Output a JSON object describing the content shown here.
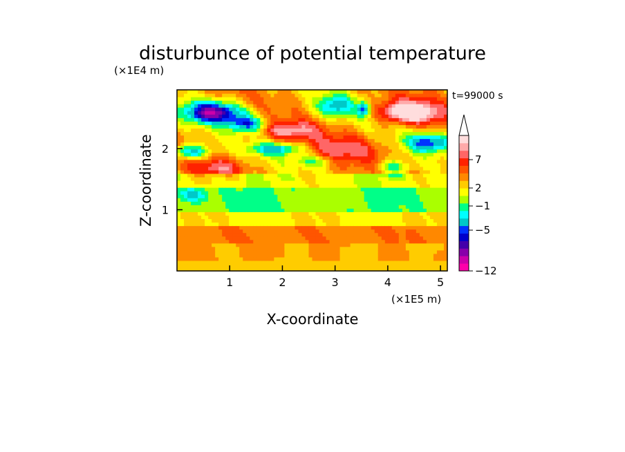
{
  "chart_data": {
    "type": "heatmap",
    "title": "disturbunce of potential temperature",
    "time_label": "t=99000 s",
    "xlabel": "X-coordinate",
    "ylabel": "Z-coordinate",
    "x_unit": "(×1E5 m)",
    "y_unit": "(×1E4 m)",
    "xlim": [
      0,
      5.13
    ],
    "ylim": [
      0,
      2.96
    ],
    "x_ticks": [
      1,
      2,
      3,
      4,
      5
    ],
    "y_ticks": [
      1,
      2
    ],
    "x_tick_labels": [
      "1",
      "2",
      "3",
      "4",
      "5"
    ],
    "y_tick_labels": [
      "1",
      "2"
    ],
    "colorbar": {
      "colors": [
        "#ff00aa",
        "#cc00aa",
        "#8800aa",
        "#4400aa",
        "#0000cc",
        "#0033ff",
        "#00c8c8",
        "#00ffff",
        "#00ff88",
        "#aaff00",
        "#ffff00",
        "#ffcc00",
        "#ff8800",
        "#ff5500",
        "#ff2200",
        "#ff6666",
        "#ffaaaa",
        "#ffdddd"
      ],
      "labels": [
        {
          "value": -12,
          "text": "−12"
        },
        {
          "value": -5,
          "text": "−5"
        },
        {
          "value": -1,
          "text": "−1"
        },
        {
          "value": 2,
          "text": "2"
        },
        {
          "value": 7,
          "text": "7"
        }
      ]
    },
    "field": {
      "features": [
        {
          "x": 0.7,
          "z": 2.6,
          "amp": -9,
          "rx": 0.55,
          "rz": 0.18
        },
        {
          "x": 1.35,
          "z": 2.4,
          "amp": -6,
          "rx": 0.35,
          "rz": 0.14
        },
        {
          "x": 2.1,
          "z": 2.3,
          "amp": 4,
          "rx": 0.6,
          "rz": 0.15
        },
        {
          "x": 1.9,
          "z": 2.0,
          "amp": -5,
          "rx": 0.5,
          "rz": 0.1
        },
        {
          "x": 3.0,
          "z": 2.7,
          "amp": -5,
          "rx": 0.35,
          "rz": 0.18
        },
        {
          "x": 3.55,
          "z": 2.65,
          "amp": -6,
          "rx": 0.12,
          "rz": 0.12
        },
        {
          "x": 4.4,
          "z": 2.6,
          "amp": 8,
          "rx": 0.55,
          "rz": 0.18
        },
        {
          "x": 4.8,
          "z": 2.1,
          "amp": -6,
          "rx": 0.45,
          "rz": 0.15
        },
        {
          "x": 4.1,
          "z": 1.7,
          "amp": -4,
          "rx": 0.3,
          "rz": 0.12
        },
        {
          "x": 0.25,
          "z": 1.95,
          "amp": -6,
          "rx": 0.35,
          "rz": 0.12
        },
        {
          "x": 0.8,
          "z": 1.7,
          "amp": 3,
          "rx": 0.5,
          "rz": 0.15
        },
        {
          "x": 2.6,
          "z": 1.8,
          "amp": -3,
          "rx": 0.4,
          "rz": 0.1
        },
        {
          "x": 3.2,
          "z": 2.0,
          "amp": 3,
          "rx": 0.7,
          "rz": 0.22
        },
        {
          "x": 0.3,
          "z": 1.25,
          "amp": -3,
          "rx": 0.25,
          "rz": 0.1
        }
      ]
    }
  }
}
